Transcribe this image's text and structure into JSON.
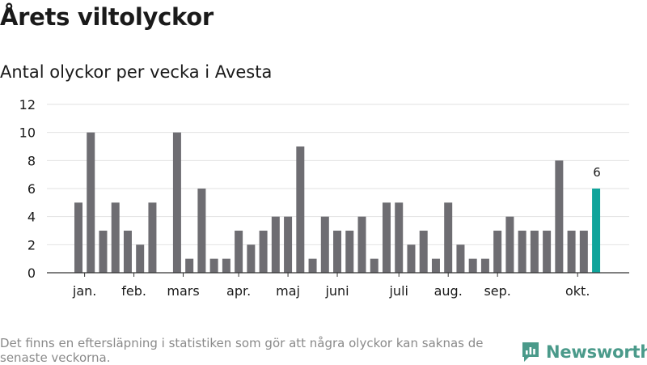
{
  "header": {
    "title": "Årets viltolyckor",
    "subtitle": "Antal olyckor per vecka i Avesta"
  },
  "chart_data": {
    "type": "bar",
    "title": "Årets viltolyckor",
    "subtitle": "Antal olyckor per vecka i Avesta",
    "xlabel": "",
    "ylabel": "",
    "ylim": [
      0,
      12
    ],
    "yticks": [
      0,
      2,
      4,
      6,
      8,
      10,
      12
    ],
    "grid": true,
    "values": [
      5,
      10,
      3,
      5,
      3,
      2,
      5,
      0,
      10,
      1,
      6,
      1,
      1,
      3,
      2,
      3,
      4,
      4,
      9,
      1,
      4,
      3,
      3,
      4,
      1,
      5,
      5,
      2,
      3,
      1,
      5,
      2,
      1,
      1,
      3,
      4,
      3,
      3,
      3,
      8,
      3,
      3,
      6
    ],
    "month_labels": [
      {
        "label": "jan.",
        "week_index": 0.5
      },
      {
        "label": "feb.",
        "week_index": 4.5
      },
      {
        "label": "mars",
        "week_index": 8.5
      },
      {
        "label": "apr.",
        "week_index": 13
      },
      {
        "label": "maj",
        "week_index": 17
      },
      {
        "label": "juni",
        "week_index": 21
      },
      {
        "label": "juli",
        "week_index": 26
      },
      {
        "label": "aug.",
        "week_index": 30
      },
      {
        "label": "sep.",
        "week_index": 34
      },
      {
        "label": "okt.",
        "week_index": 40.5
      }
    ],
    "highlight_index": 42,
    "highlight_label": "6",
    "colors": {
      "bar": "#6e6d72",
      "highlight": "#10a49b",
      "grid": "#e2e2e2",
      "axis": "#333333"
    }
  },
  "footer": {
    "note": "Det finns en eftersläpning i statistiken som gör att några olyckor kan saknas de senaste veckorna.",
    "brand": "Newsworthy",
    "brand_icon": "newsworthy-logo-icon",
    "brand_color": "#4a9a8a"
  }
}
